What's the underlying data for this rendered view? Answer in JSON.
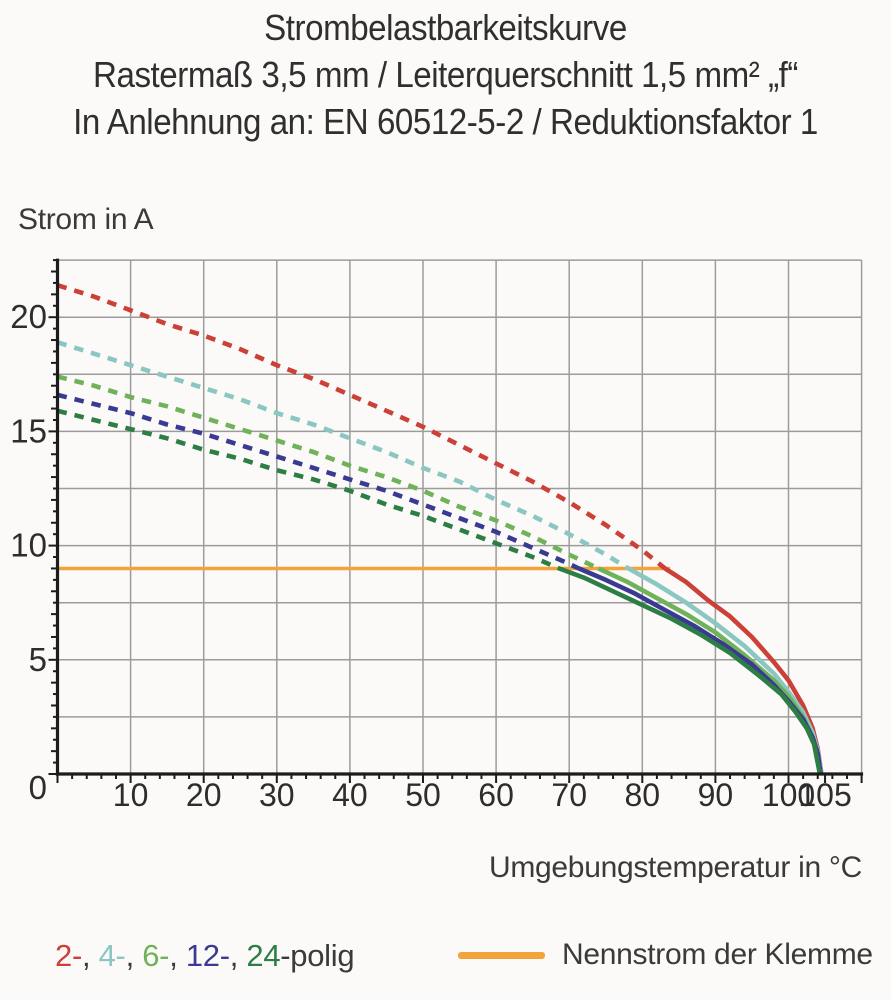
{
  "title": {
    "line1": "Strombelastbarkeitskurve",
    "line2": "Rastermaß 3,5 mm / Leiterquerschnitt 1,5 mm² „f“",
    "line3": "In Anlehnung an: EN 60512-5-2 / Reduktionsfaktor 1"
  },
  "chart_data": {
    "type": "line",
    "title": "Strombelastbarkeitskurve",
    "xlabel": "Umgebungstemperatur in °C",
    "ylabel": "Strom in A",
    "xlim": [
      0,
      110
    ],
    "ylim": [
      0,
      22.5
    ],
    "grid": true,
    "x_grid_step": 10,
    "y_grid_step": 2.5,
    "x_minor_tick_step": 2,
    "y_minor_tick_step": 0.5,
    "x_tick_labels": [
      10,
      20,
      30,
      40,
      50,
      60,
      70,
      80,
      90,
      100,
      105
    ],
    "y_tick_labels": [
      0,
      5,
      10,
      15,
      20
    ],
    "legend_position": "bottom",
    "colors": {
      "grid": "#9c9c9c",
      "axis": "#1c1c1c",
      "tick_text": "#2d2d2d"
    },
    "rated_current_line": {
      "label": "Nennstrom der Klemme",
      "value": 9,
      "x_start": 0,
      "x_end": 83.8,
      "color": "#f2a43b"
    },
    "series": [
      {
        "name": "2-polig",
        "poles": 2,
        "color": "#cb4037",
        "dashed_points": [
          [
            0,
            21.4
          ],
          [
            5,
            20.9
          ],
          [
            10,
            20.3
          ],
          [
            15,
            19.7
          ],
          [
            20,
            19.2
          ],
          [
            25,
            18.6
          ],
          [
            30,
            17.9
          ],
          [
            35,
            17.3
          ],
          [
            40,
            16.6
          ],
          [
            45,
            15.9
          ],
          [
            50,
            15.2
          ],
          [
            55,
            14.4
          ],
          [
            60,
            13.6
          ],
          [
            65,
            12.8
          ],
          [
            70,
            11.9
          ],
          [
            75,
            10.9
          ],
          [
            80,
            9.8
          ],
          [
            83.1,
            9.0
          ]
        ],
        "solid_points": [
          [
            83.1,
            9.0
          ],
          [
            86,
            8.4
          ],
          [
            89,
            7.6
          ],
          [
            92,
            6.9
          ],
          [
            95,
            6.0
          ],
          [
            98,
            4.9
          ],
          [
            100,
            4.1
          ],
          [
            102,
            3.0
          ],
          [
            103.3,
            2.0
          ],
          [
            104,
            1.1
          ],
          [
            104.5,
            0
          ]
        ]
      },
      {
        "name": "4-polig",
        "poles": 4,
        "color": "#8ac7c2",
        "dashed_points": [
          [
            0,
            18.9
          ],
          [
            5,
            18.4
          ],
          [
            10,
            17.9
          ],
          [
            15,
            17.4
          ],
          [
            20,
            16.9
          ],
          [
            25,
            16.4
          ],
          [
            30,
            15.8
          ],
          [
            35,
            15.3
          ],
          [
            40,
            14.7
          ],
          [
            45,
            14.1
          ],
          [
            50,
            13.4
          ],
          [
            55,
            12.8
          ],
          [
            60,
            12.0
          ],
          [
            65,
            11.3
          ],
          [
            70,
            10.5
          ],
          [
            75,
            9.6
          ],
          [
            78.1,
            9.0
          ]
        ],
        "solid_points": [
          [
            78.1,
            9.0
          ],
          [
            82,
            8.3
          ],
          [
            86,
            7.5
          ],
          [
            90,
            6.6
          ],
          [
            94,
            5.6
          ],
          [
            98,
            4.4
          ],
          [
            100,
            3.6
          ],
          [
            102,
            2.7
          ],
          [
            103.3,
            1.8
          ],
          [
            104,
            1.0
          ],
          [
            104.5,
            0
          ]
        ]
      },
      {
        "name": "6-polig",
        "poles": 6,
        "color": "#70b25a",
        "dashed_points": [
          [
            0,
            17.4
          ],
          [
            5,
            17.0
          ],
          [
            10,
            16.5
          ],
          [
            15,
            16.1
          ],
          [
            20,
            15.6
          ],
          [
            25,
            15.1
          ],
          [
            30,
            14.6
          ],
          [
            35,
            14.1
          ],
          [
            40,
            13.5
          ],
          [
            45,
            13.0
          ],
          [
            50,
            12.4
          ],
          [
            55,
            11.7
          ],
          [
            60,
            11.1
          ],
          [
            65,
            10.4
          ],
          [
            70,
            9.6
          ],
          [
            74,
            9.0
          ]
        ],
        "solid_points": [
          [
            74,
            9.0
          ],
          [
            78,
            8.4
          ],
          [
            82,
            7.7
          ],
          [
            86,
            7.0
          ],
          [
            90,
            6.2
          ],
          [
            94,
            5.2
          ],
          [
            98,
            4.1
          ],
          [
            100,
            3.4
          ],
          [
            102,
            2.5
          ],
          [
            103.3,
            1.6
          ],
          [
            104,
            0.9
          ],
          [
            104.4,
            0
          ]
        ]
      },
      {
        "name": "12-polig",
        "poles": 12,
        "color": "#3b3a92",
        "dashed_points": [
          [
            0,
            16.6
          ],
          [
            5,
            16.2
          ],
          [
            10,
            15.8
          ],
          [
            15,
            15.3
          ],
          [
            20,
            14.9
          ],
          [
            25,
            14.4
          ],
          [
            30,
            13.9
          ],
          [
            35,
            13.4
          ],
          [
            40,
            12.9
          ],
          [
            45,
            12.4
          ],
          [
            50,
            11.8
          ],
          [
            55,
            11.2
          ],
          [
            60,
            10.6
          ],
          [
            65,
            9.9
          ],
          [
            70,
            9.2
          ],
          [
            71.3,
            9.0
          ]
        ],
        "solid_points": [
          [
            71.3,
            9.0
          ],
          [
            75,
            8.5
          ],
          [
            79,
            7.9
          ],
          [
            83,
            7.2
          ],
          [
            87,
            6.5
          ],
          [
            91,
            5.7
          ],
          [
            95,
            4.8
          ],
          [
            98,
            3.9
          ],
          [
            100,
            3.2
          ],
          [
            102,
            2.4
          ],
          [
            103.3,
            1.6
          ],
          [
            104,
            0.9
          ],
          [
            104.4,
            0
          ]
        ]
      },
      {
        "name": "24-polig",
        "poles": 24,
        "color": "#2d7e45",
        "dashed_points": [
          [
            0,
            15.9
          ],
          [
            5,
            15.5
          ],
          [
            10,
            15.1
          ],
          [
            15,
            14.7
          ],
          [
            20,
            14.2
          ],
          [
            25,
            13.8
          ],
          [
            30,
            13.3
          ],
          [
            35,
            12.9
          ],
          [
            40,
            12.4
          ],
          [
            45,
            11.8
          ],
          [
            50,
            11.3
          ],
          [
            55,
            10.7
          ],
          [
            60,
            10.1
          ],
          [
            65,
            9.5
          ],
          [
            68.6,
            9.0
          ]
        ],
        "solid_points": [
          [
            68.6,
            9.0
          ],
          [
            72,
            8.6
          ],
          [
            76,
            8.0
          ],
          [
            80,
            7.4
          ],
          [
            84,
            6.8
          ],
          [
            88,
            6.1
          ],
          [
            92,
            5.3
          ],
          [
            96,
            4.3
          ],
          [
            99,
            3.5
          ],
          [
            101,
            2.7
          ],
          [
            102.5,
            2.0
          ],
          [
            103.5,
            1.3
          ],
          [
            104.3,
            0
          ]
        ]
      }
    ]
  },
  "legend": {
    "series_parts": [
      {
        "text": "2-",
        "color": "#cb4037"
      },
      {
        "text": ", ",
        "color": "#3a3a3a"
      },
      {
        "text": "4-",
        "color": "#8ac7c2"
      },
      {
        "text": ", ",
        "color": "#3a3a3a"
      },
      {
        "text": "6-",
        "color": "#70b25a"
      },
      {
        "text": ", ",
        "color": "#3a3a3a"
      },
      {
        "text": "12-",
        "color": "#3b3a92"
      },
      {
        "text": ", ",
        "color": "#3a3a3a"
      },
      {
        "text": "24",
        "color": "#2d7e45"
      },
      {
        "text": "-polig",
        "color": "#3a3a3a"
      }
    ]
  }
}
